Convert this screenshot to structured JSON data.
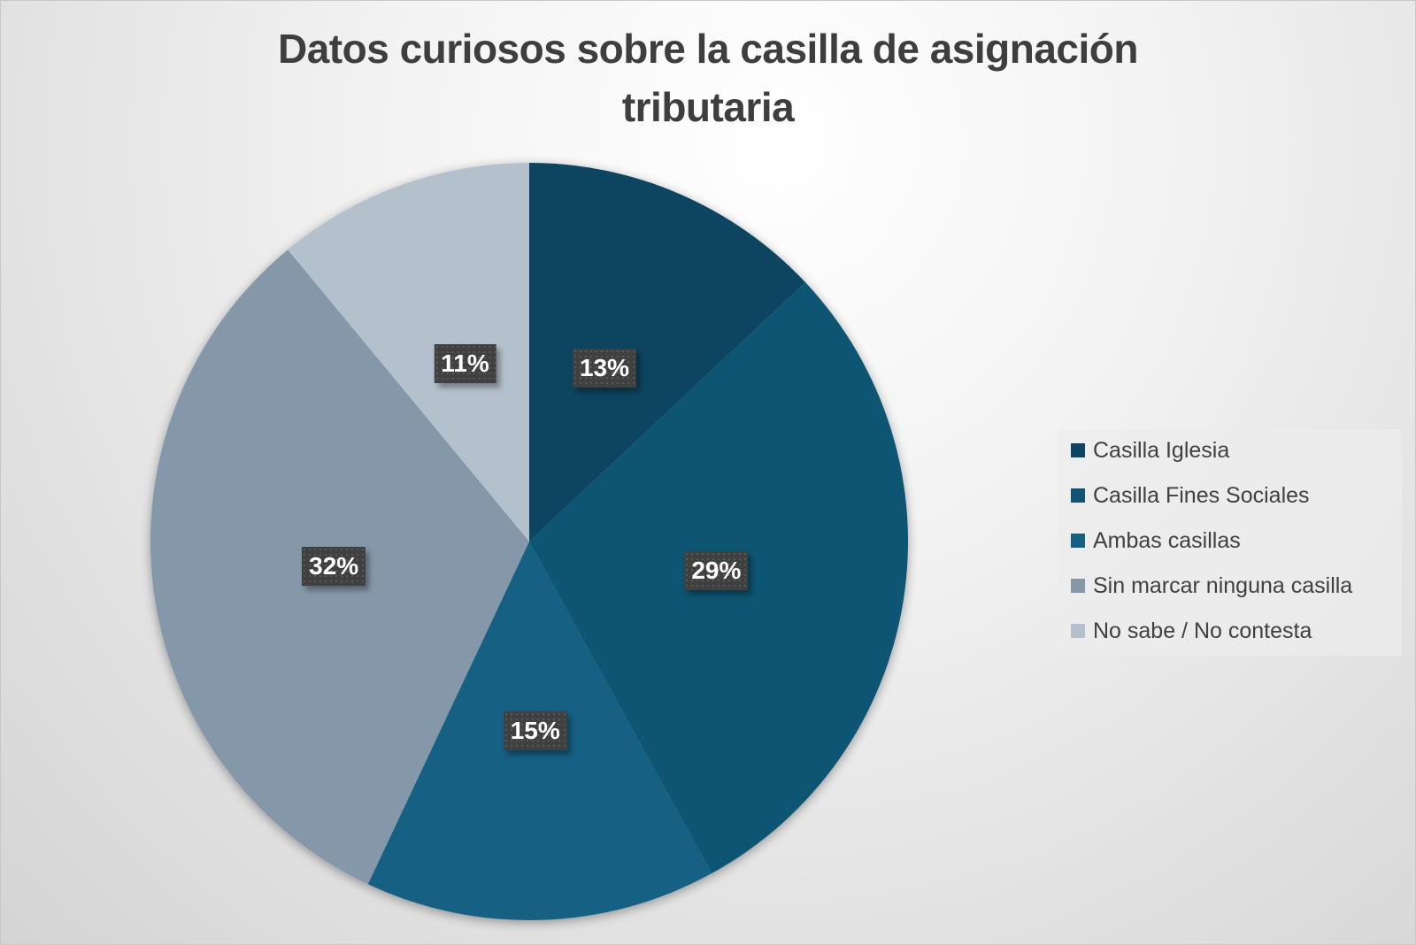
{
  "chart_data": {
    "type": "pie",
    "title": "Datos curiosos sobre la casilla de asignación tributaria",
    "title_lines": [
      "Datos curiosos sobre la casilla de asignación",
      "tributaria"
    ],
    "categories": [
      "Casilla Iglesia",
      "Casilla Fines Sociales",
      "Ambas casillas",
      "Sin marcar ninguna casilla",
      "No sabe / No contesta"
    ],
    "values": [
      13,
      29,
      15,
      32,
      11
    ],
    "unit": "%",
    "data_labels": [
      "13%",
      "29%",
      "15%",
      "32%",
      "11%"
    ],
    "colors": [
      "#0e4560",
      "#115572",
      "#176084",
      "#8598aa",
      "#b4c0cb"
    ],
    "start_angle": "12 o'clock, clockwise",
    "legend_position": "right"
  },
  "legend": {
    "items": [
      {
        "label": "Casilla Iglesia",
        "color": "#0e4560"
      },
      {
        "label": "Casilla Fines Sociales",
        "color": "#115572"
      },
      {
        "label": "Ambas casillas",
        "color": "#176084"
      },
      {
        "label": "Sin marcar ninguna casilla",
        "color": "#8598aa"
      },
      {
        "label": "No sabe / No contesta",
        "color": "#b4c0cb"
      }
    ]
  }
}
